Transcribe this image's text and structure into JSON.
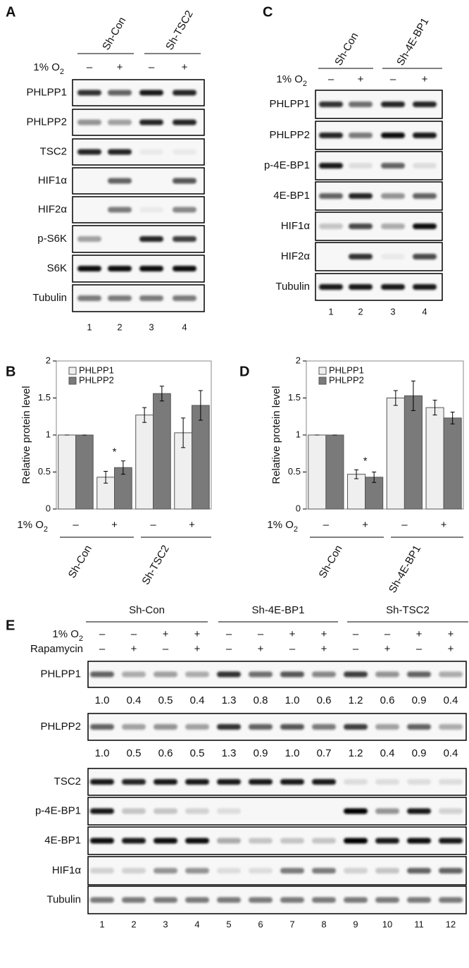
{
  "panel_a": {
    "letter": "A",
    "groups": [
      "Sh-Con",
      "Sh-TSC2"
    ],
    "condition": {
      "text": "1% O",
      "sub": "2"
    },
    "signs": [
      "–",
      "+",
      "–",
      "+"
    ],
    "rows": [
      "PHLPP1",
      "PHLPP2",
      "TSC2",
      "HIF1α",
      "HIF2α",
      "p-S6K",
      "S6K",
      "Tubulin"
    ],
    "lanes": [
      "1",
      "2",
      "3",
      "4"
    ]
  },
  "panel_c": {
    "letter": "C",
    "groups": [
      "Sh-Con",
      "Sh-4E-BP1"
    ],
    "condition": {
      "text": "1% O",
      "sub": "2"
    },
    "signs": [
      "–",
      "+",
      "–",
      "+"
    ],
    "rows": [
      "PHLPP1",
      "PHLPP2",
      "p-4E-BP1",
      "4E-BP1",
      "HIF1α",
      "HIF2α",
      "Tubulin"
    ],
    "lanes": [
      "1",
      "2",
      "3",
      "4"
    ]
  },
  "chart_data": [
    {
      "type": "bar",
      "panel_label": "B",
      "y_label": "Relative protein level",
      "condition": {
        "text": "1% O",
        "sub": "2"
      },
      "categories": [
        "–",
        "+",
        "–",
        "+"
      ],
      "groups": [
        "Sh-Con",
        "Sh-TSC2"
      ],
      "annotation": "*",
      "legend": "upper-left",
      "series": [
        {
          "name": "PHLPP1",
          "color": "#efefef",
          "values": [
            1,
            0.43,
            1.27,
            1.03
          ],
          "errors": [
            0,
            0.08,
            0.1,
            0.2
          ]
        },
        {
          "name": "PHLPP2",
          "color": "#7a7a7a",
          "values": [
            1,
            0.56,
            1.56,
            1.4
          ],
          "errors": [
            0,
            0.09,
            0.1,
            0.2
          ]
        }
      ],
      "ylim": [
        0,
        2
      ],
      "yticks": [
        0,
        0.5,
        1,
        1.5,
        2
      ]
    },
    {
      "type": "bar",
      "panel_label": "D",
      "y_label": "Relative protein level",
      "condition": {
        "text": "1% O",
        "sub": "2"
      },
      "categories": [
        "–",
        "+",
        "–",
        "+"
      ],
      "groups": [
        "Sh-Con",
        "Sh-4E-BP1"
      ],
      "annotation": "*",
      "legend": "upper-left",
      "series": [
        {
          "name": "PHLPP1",
          "color": "#efefef",
          "values": [
            1,
            0.47,
            1.5,
            1.37
          ],
          "errors": [
            0,
            0.06,
            0.1,
            0.1
          ]
        },
        {
          "name": "PHLPP2",
          "color": "#7a7a7a",
          "values": [
            1,
            0.43,
            1.53,
            1.23
          ],
          "errors": [
            0,
            0.07,
            0.2,
            0.08
          ]
        }
      ],
      "ylim": [
        0,
        2
      ],
      "yticks": [
        0,
        0.5,
        1,
        1.5,
        2
      ]
    }
  ],
  "panel_e": {
    "letter": "E",
    "groups": [
      "Sh-Con",
      "Sh-4E-BP1",
      "Sh-TSC2"
    ],
    "conditions": [
      {
        "label": {
          "text": "1% O",
          "sub": "2"
        },
        "signs": [
          "–",
          "–",
          "+",
          "+",
          "–",
          "–",
          "+",
          "+",
          "–",
          "–",
          "+",
          "+"
        ]
      },
      {
        "label": {
          "text": "Rapamycin"
        },
        "signs": [
          "–",
          "+",
          "–",
          "+",
          "–",
          "+",
          "–",
          "+",
          "–",
          "+",
          "–",
          "+"
        ]
      }
    ],
    "rows": [
      {
        "name": "PHLPP1",
        "quant": [
          "1.0",
          "0.4",
          "0.5",
          "0.4",
          "1.3",
          "0.8",
          "1.0",
          "0.6",
          "1.2",
          "0.6",
          "0.9",
          "0.4"
        ]
      },
      {
        "name": "PHLPP2",
        "quant": [
          "1.0",
          "0.5",
          "0.6",
          "0.5",
          "1.3",
          "0.9",
          "1.0",
          "0.7",
          "1.2",
          "0.4",
          "0.9",
          "0.4"
        ]
      },
      {
        "name": "TSC2"
      },
      {
        "name": "p-4E-BP1"
      },
      {
        "name": "4E-BP1"
      },
      {
        "name": "HIF1α"
      },
      {
        "name": "Tubulin"
      }
    ],
    "lanes": [
      "1",
      "2",
      "3",
      "4",
      "5",
      "6",
      "7",
      "8",
      "9",
      "10",
      "11",
      "12"
    ]
  }
}
